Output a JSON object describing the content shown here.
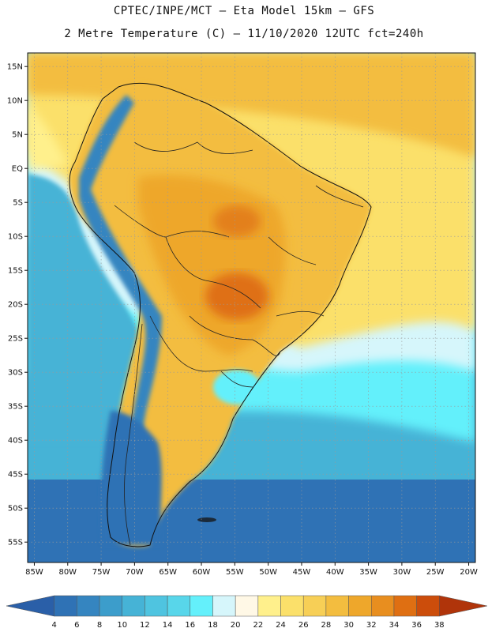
{
  "header": {
    "line1": "CPTEC/INPE/MCT –  Eta Model 15km – GFS",
    "line2": "2 Metre Temperature (C) – 11/10/2020 12UTC fct=240h"
  },
  "axes": {
    "lat_labels": [
      "15N",
      "10N",
      "5N",
      "EQ",
      "5S",
      "10S",
      "15S",
      "20S",
      "25S",
      "30S",
      "35S",
      "40S",
      "45S",
      "50S",
      "55S"
    ],
    "lat_values": [
      15,
      10,
      5,
      0,
      -5,
      -10,
      -15,
      -20,
      -25,
      -30,
      -35,
      -40,
      -45,
      -50,
      -55
    ],
    "lon_labels": [
      "85W",
      "80W",
      "75W",
      "70W",
      "65W",
      "60W",
      "55W",
      "50W",
      "45W",
      "40W",
      "35W",
      "30W",
      "25W",
      "20W"
    ],
    "lon_values": [
      -85,
      -80,
      -75,
      -70,
      -65,
      -60,
      -55,
      -50,
      -45,
      -40,
      -35,
      -30,
      -25,
      -20
    ],
    "lat_range": [
      -58,
      17
    ],
    "lon_range": [
      -86,
      -19
    ],
    "grid": "dotted"
  },
  "colorbar": {
    "labels": [
      "4",
      "6",
      "8",
      "10",
      "12",
      "14",
      "16",
      "18",
      "20",
      "22",
      "24",
      "26",
      "28",
      "30",
      "32",
      "34",
      "36",
      "38"
    ],
    "colors": [
      "#2a5fa8",
      "#2f72b5",
      "#3585c0",
      "#3c9dcb",
      "#46b3d6",
      "#4fc4e0",
      "#58d6ea",
      "#64f0fb",
      "#d6f6fb",
      "#fff8e6",
      "#fff08c",
      "#fbe06a",
      "#f7cf56",
      "#f3bd3f",
      "#eea72b",
      "#e88e1f",
      "#df6f12",
      "#cc4d0b",
      "#b0340a"
    ]
  },
  "map": {
    "regions": [
      {
        "name": "south-atlantic-cold",
        "color": "#2f72b5"
      },
      {
        "name": "south-atlantic-mid",
        "color": "#46b3d6"
      },
      {
        "name": "subtropical-atlantic",
        "color": "#64f0fb"
      },
      {
        "name": "tropical-atlantic",
        "color": "#fbe06a"
      },
      {
        "name": "caribbean",
        "color": "#f3bd3f"
      },
      {
        "name": "pacific-tropical",
        "color": "#fff08c"
      },
      {
        "name": "pacific-humboldt",
        "color": "#46b3d6"
      },
      {
        "name": "continent-warm",
        "color": "#f3bd3f"
      },
      {
        "name": "continent-hot",
        "color": "#eea72b"
      },
      {
        "name": "hotspot-center",
        "color": "#df6f12"
      },
      {
        "name": "andes",
        "color": "#3585c0"
      },
      {
        "name": "patagonia",
        "color": "#2f72b5"
      }
    ]
  }
}
